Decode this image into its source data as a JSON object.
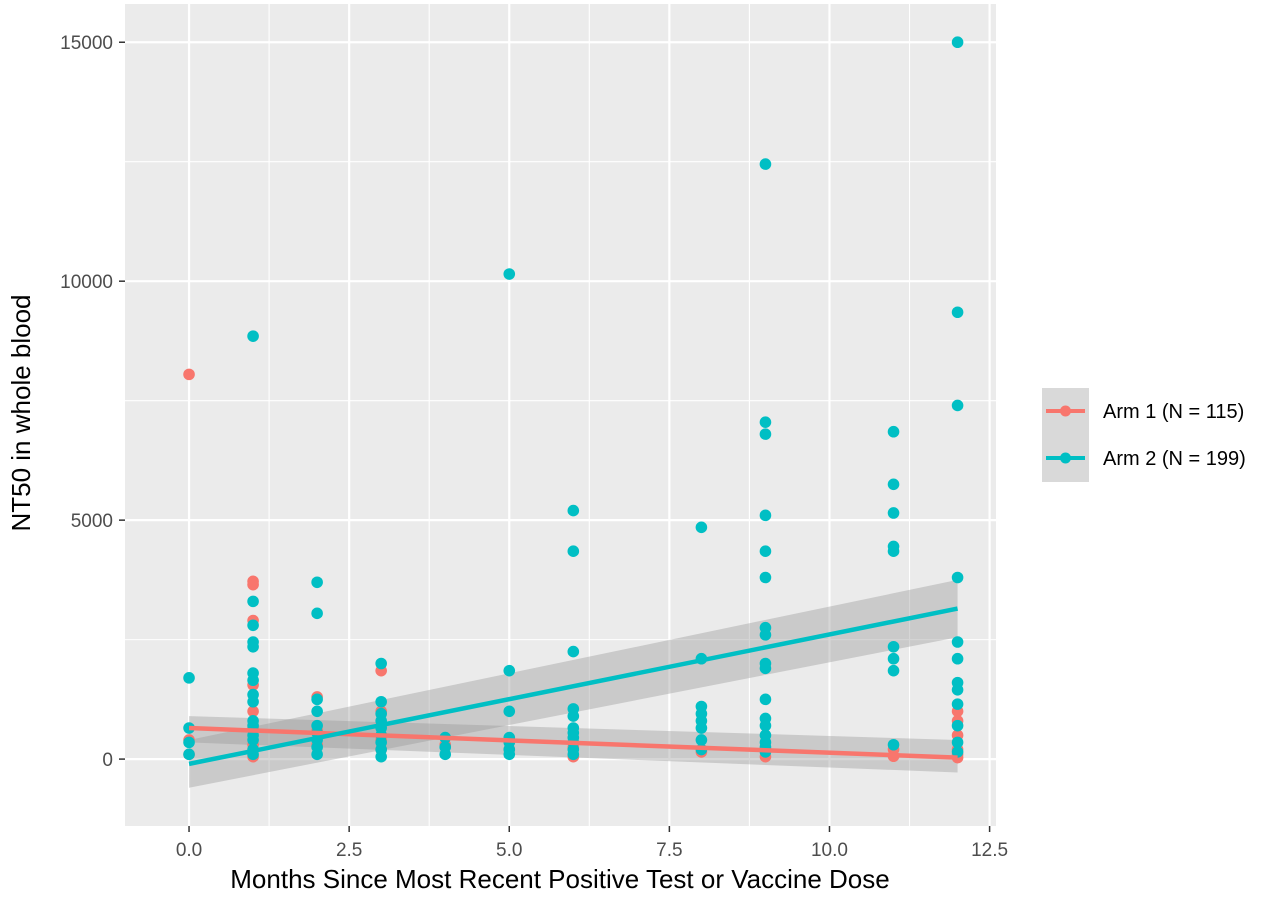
{
  "chart_data": {
    "type": "scatter",
    "title": "",
    "xlabel": "Months Since Most Recent Positive Test or Vaccine Dose",
    "ylabel": "NT50 in whole blood",
    "xlim": [
      -1.0,
      12.6
    ],
    "ylim": [
      -1400,
      15800
    ],
    "x_ticks": [
      {
        "value": 0.0,
        "label": "0.0"
      },
      {
        "value": 2.5,
        "label": "2.5"
      },
      {
        "value": 5.0,
        "label": "5.0"
      },
      {
        "value": 7.5,
        "label": "7.5"
      },
      {
        "value": 10.0,
        "label": "10.0"
      },
      {
        "value": 12.5,
        "label": "12.5"
      }
    ],
    "y_ticks": [
      {
        "value": 0,
        "label": "0"
      },
      {
        "value": 5000,
        "label": "5000"
      },
      {
        "value": 10000,
        "label": "10000"
      },
      {
        "value": 15000,
        "label": "15000"
      }
    ],
    "grid": true,
    "legend_position": "right",
    "series": [
      {
        "name": "Arm 1 (N = 115)",
        "color": "#F8766D",
        "points": [
          [
            0,
            8050
          ],
          [
            0,
            400
          ],
          [
            0,
            100
          ],
          [
            1,
            3720
          ],
          [
            1,
            3650
          ],
          [
            1,
            2900
          ],
          [
            1,
            1550
          ],
          [
            1,
            1000
          ],
          [
            1,
            650
          ],
          [
            1,
            300
          ],
          [
            1,
            50
          ],
          [
            2,
            1300
          ],
          [
            2,
            600
          ],
          [
            2,
            300
          ],
          [
            3,
            1850
          ],
          [
            3,
            1000
          ],
          [
            3,
            700
          ],
          [
            3,
            400
          ],
          [
            3,
            200
          ],
          [
            4,
            300
          ],
          [
            5,
            400
          ],
          [
            5,
            200
          ],
          [
            6,
            250
          ],
          [
            6,
            50
          ],
          [
            8,
            150
          ],
          [
            9,
            200
          ],
          [
            9,
            50
          ],
          [
            11,
            200
          ],
          [
            11,
            60
          ],
          [
            12,
            1000
          ],
          [
            12,
            800
          ],
          [
            12,
            500
          ],
          [
            12,
            200
          ],
          [
            12,
            100
          ],
          [
            12,
            30
          ]
        ],
        "fit": {
          "x": [
            0,
            12
          ],
          "y": [
            650,
            30
          ]
        },
        "ci_band": {
          "x": [
            0,
            12
          ],
          "lower": [
            350,
            -280
          ],
          "upper": [
            900,
            400
          ]
        }
      },
      {
        "name": "Arm 2 (N = 199)",
        "color": "#00BFC4",
        "points": [
          [
            0,
            1700
          ],
          [
            0,
            650
          ],
          [
            0,
            350
          ],
          [
            0,
            100
          ],
          [
            1,
            8850
          ],
          [
            1,
            3300
          ],
          [
            1,
            2800
          ],
          [
            1,
            2450
          ],
          [
            1,
            2350
          ],
          [
            1,
            1800
          ],
          [
            1,
            1650
          ],
          [
            1,
            1350
          ],
          [
            1,
            1200
          ],
          [
            1,
            800
          ],
          [
            1,
            700
          ],
          [
            1,
            500
          ],
          [
            1,
            400
          ],
          [
            1,
            200
          ],
          [
            1,
            100
          ],
          [
            2,
            3700
          ],
          [
            2,
            3050
          ],
          [
            2,
            1250
          ],
          [
            2,
            1000
          ],
          [
            2,
            700
          ],
          [
            2,
            550
          ],
          [
            2,
            400
          ],
          [
            2,
            250
          ],
          [
            2,
            100
          ],
          [
            3,
            2000
          ],
          [
            3,
            1200
          ],
          [
            3,
            950
          ],
          [
            3,
            800
          ],
          [
            3,
            650
          ],
          [
            3,
            500
          ],
          [
            3,
            350
          ],
          [
            3,
            200
          ],
          [
            3,
            50
          ],
          [
            4,
            450
          ],
          [
            4,
            250
          ],
          [
            4,
            100
          ],
          [
            5,
            10150
          ],
          [
            5,
            1850
          ],
          [
            5,
            1000
          ],
          [
            5,
            450
          ],
          [
            5,
            350
          ],
          [
            5,
            200
          ],
          [
            5,
            100
          ],
          [
            6,
            5200
          ],
          [
            6,
            4350
          ],
          [
            6,
            2250
          ],
          [
            6,
            1050
          ],
          [
            6,
            900
          ],
          [
            6,
            650
          ],
          [
            6,
            550
          ],
          [
            6,
            450
          ],
          [
            6,
            350
          ],
          [
            6,
            200
          ],
          [
            6,
            100
          ],
          [
            8,
            4850
          ],
          [
            8,
            2100
          ],
          [
            8,
            1100
          ],
          [
            8,
            950
          ],
          [
            8,
            800
          ],
          [
            8,
            650
          ],
          [
            8,
            400
          ],
          [
            8,
            200
          ],
          [
            9,
            12450
          ],
          [
            9,
            7050
          ],
          [
            9,
            6800
          ],
          [
            9,
            5100
          ],
          [
            9,
            4350
          ],
          [
            9,
            3800
          ],
          [
            9,
            2750
          ],
          [
            9,
            2600
          ],
          [
            9,
            2000
          ],
          [
            9,
            1900
          ],
          [
            9,
            1250
          ],
          [
            9,
            850
          ],
          [
            9,
            700
          ],
          [
            9,
            500
          ],
          [
            9,
            350
          ],
          [
            9,
            250
          ],
          [
            9,
            150
          ],
          [
            11,
            6850
          ],
          [
            11,
            5750
          ],
          [
            11,
            5150
          ],
          [
            11,
            4450
          ],
          [
            11,
            4350
          ],
          [
            11,
            2350
          ],
          [
            11,
            2100
          ],
          [
            11,
            1850
          ],
          [
            11,
            300
          ],
          [
            12,
            15000
          ],
          [
            12,
            9350
          ],
          [
            12,
            7400
          ],
          [
            12,
            3800
          ],
          [
            12,
            2450
          ],
          [
            12,
            2100
          ],
          [
            12,
            1600
          ],
          [
            12,
            1450
          ],
          [
            12,
            1150
          ],
          [
            12,
            700
          ],
          [
            12,
            350
          ],
          [
            12,
            150
          ]
        ],
        "fit": {
          "x": [
            0,
            12
          ],
          "y": [
            -100,
            3150
          ]
        },
        "ci_band": {
          "x": [
            0,
            12
          ],
          "lower": [
            -600,
            2550
          ],
          "upper": [
            400,
            3750
          ]
        }
      }
    ]
  }
}
